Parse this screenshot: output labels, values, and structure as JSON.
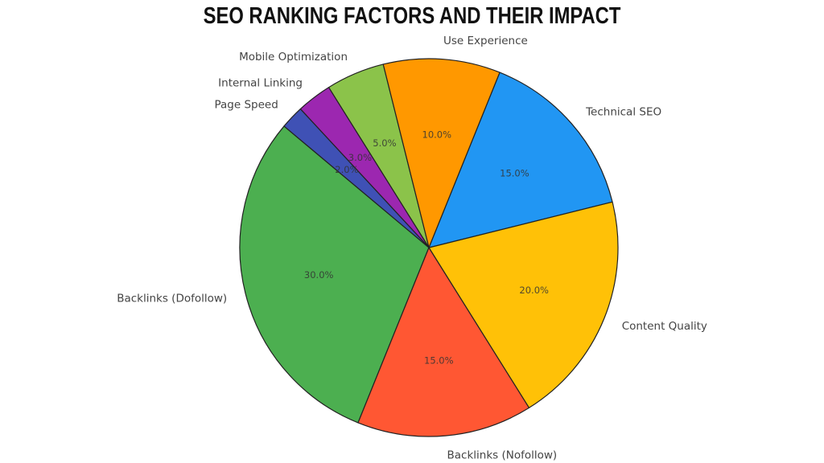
{
  "title": "SEO RANKING FACTORS AND THEIR IMPACT",
  "chart_data": {
    "type": "pie",
    "title": "SEO RANKING FACTORS AND THEIR IMPACT",
    "start_angle": 140,
    "direction": "counterclockwise",
    "center": [
      533,
      308
    ],
    "radius": 235,
    "categories": [
      "Backlinks (Dofollow)",
      "Backlinks (Nofollow)",
      "Content Quality",
      "Technical SEO",
      "Use Experience",
      "Mobile Optimization",
      "Internal Linking",
      "Page Speed"
    ],
    "values": [
      30,
      15,
      20,
      15,
      10,
      5,
      3,
      2
    ],
    "value_labels": [
      "30.0%",
      "15.0%",
      "20.0%",
      "15.0%",
      "10.0%",
      "5.0%",
      "3.0%",
      "2.0%"
    ],
    "colors": [
      "#4caf50",
      "#ff5733",
      "#ffc107",
      "#2196f3",
      "#ff9800",
      "#8bc34a",
      "#9c27b0",
      "#3f51b5"
    ],
    "edge_color": "#222222",
    "legend": "none (labels outside slices)"
  }
}
